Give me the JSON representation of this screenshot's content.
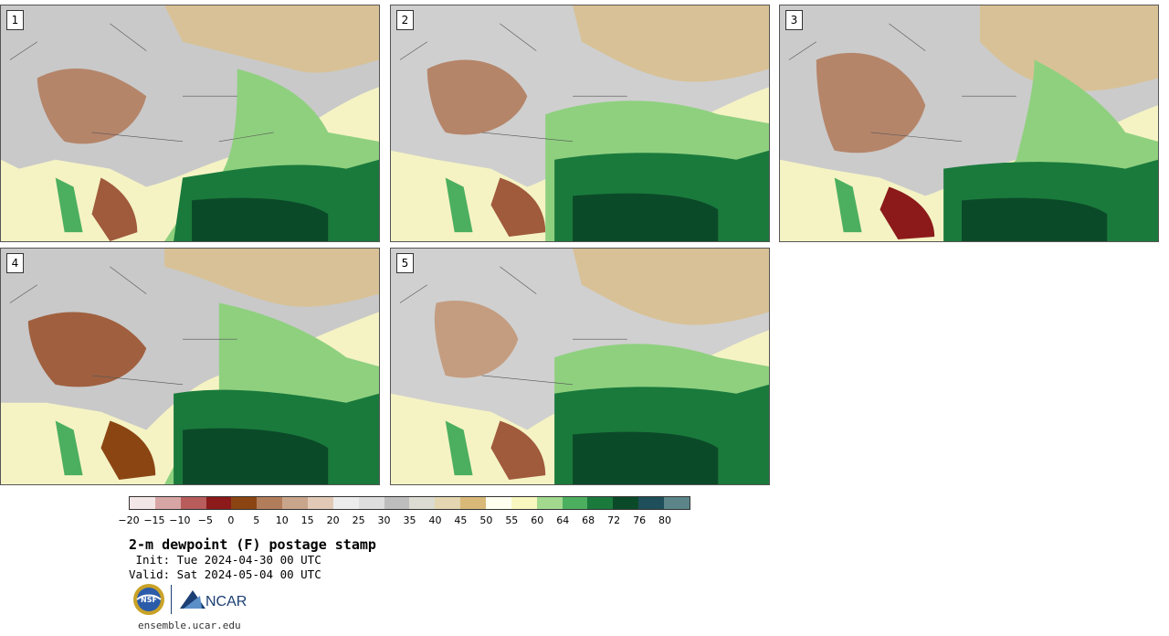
{
  "panels": [
    {
      "label": "1"
    },
    {
      "label": "2"
    },
    {
      "label": "3"
    },
    {
      "label": "4"
    },
    {
      "label": "5"
    }
  ],
  "colorbar": {
    "colors": [
      "#f3e6e6",
      "#d8a5a5",
      "#b85c5c",
      "#8c1a1a",
      "#8b4513",
      "#b27d5b",
      "#c9a58b",
      "#e1c9b6",
      "#ececec",
      "#dedede",
      "#bdbdbd",
      "#dcdcd3",
      "#e3d6b0",
      "#d8b978",
      "#fffff0",
      "#f7f7bf",
      "#a3d98f",
      "#4caf60",
      "#1a7a3c",
      "#0b4a28",
      "#1f4f5a",
      "#5b8589"
    ],
    "ticks": [
      "−20",
      "−15",
      "−10",
      "−5",
      "0",
      "5",
      "10",
      "15",
      "20",
      "25",
      "30",
      "35",
      "40",
      "45",
      "50",
      "55",
      "60",
      "64",
      "68",
      "72",
      "76",
      "80"
    ]
  },
  "title": "2-m dewpoint (F) postage stamp",
  "init": " Init: Tue 2024-04-30 00 UTC",
  "valid": "Valid: Sat 2024-05-04 00 UTC",
  "logos": {
    "nsf": "NSF",
    "ncar": "NCAR"
  },
  "footer": "ensemble.ucar.edu"
}
